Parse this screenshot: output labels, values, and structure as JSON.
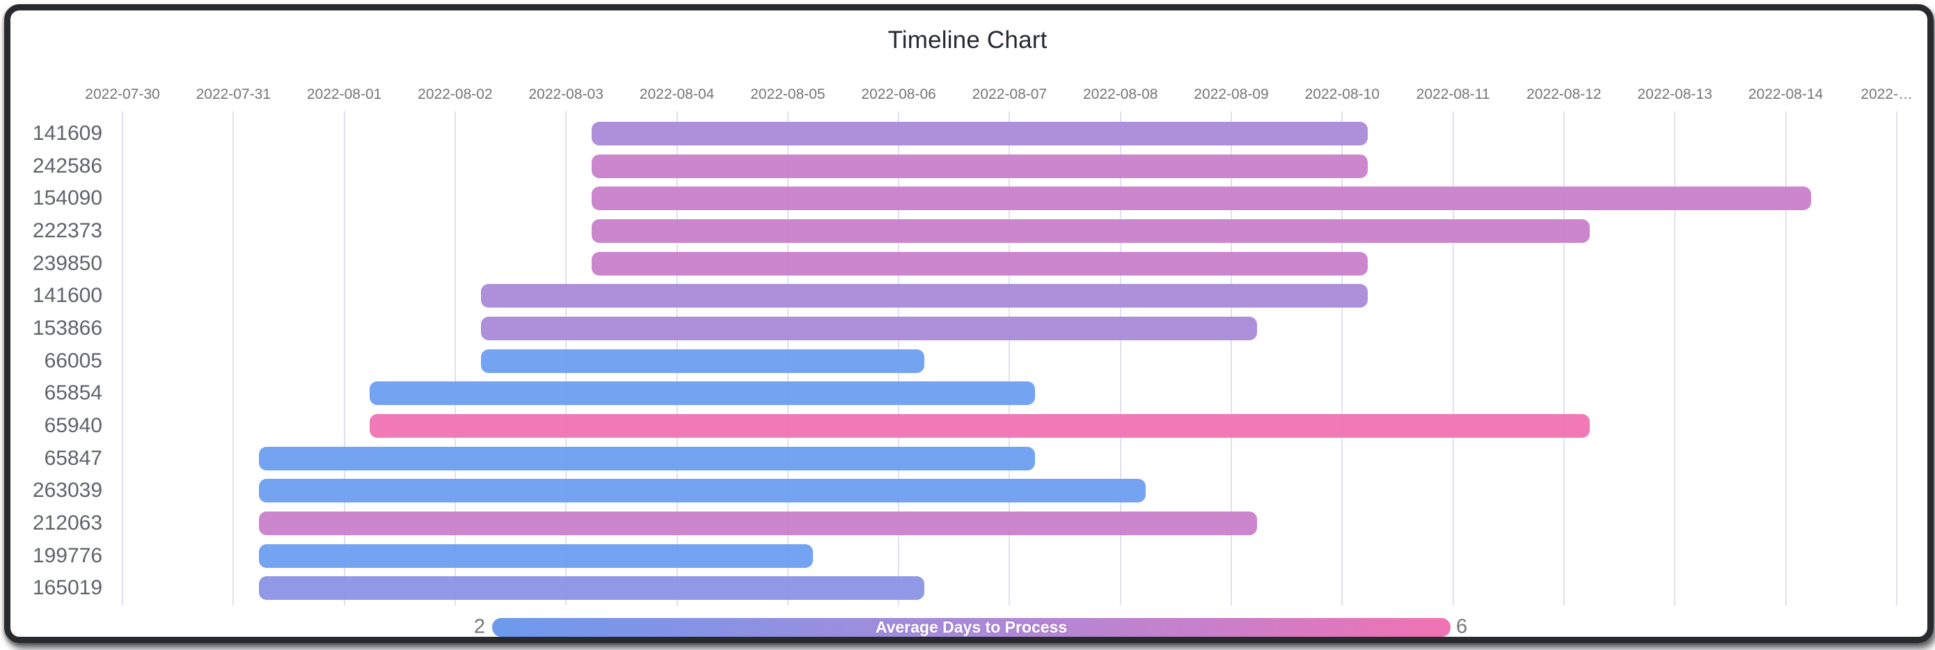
{
  "chart_data": {
    "type": "bar",
    "subtype": "timeline-gantt",
    "title": "Timeline Chart",
    "x_axis": {
      "tick_labels": [
        "2022-07-30",
        "2022-07-31",
        "2022-08-01",
        "2022-08-02",
        "2022-08-03",
        "2022-08-04",
        "2022-08-05",
        "2022-08-06",
        "2022-08-07",
        "2022-08-08",
        "2022-08-09",
        "2022-08-10",
        "2022-08-11",
        "2022-08-12",
        "2022-08-13",
        "2022-08-14",
        "2022-…"
      ],
      "start_date": "2022-07-30",
      "grid": true
    },
    "y_axis": {
      "labels": [
        "141609",
        "242586",
        "154090",
        "222373",
        "239850",
        "141600",
        "153866",
        "66005",
        "65854",
        "65940",
        "65847",
        "263039",
        "212063",
        "199776",
        "165019"
      ]
    },
    "rows": [
      {
        "id": "141609",
        "start": "2022-08-03",
        "end": "2022-08-10",
        "color": "#aa8ad8",
        "avg_days_to_process": 4
      },
      {
        "id": "242586",
        "start": "2022-08-03",
        "end": "2022-08-10",
        "color": "#c97fcb",
        "avg_days_to_process": 5
      },
      {
        "id": "154090",
        "start": "2022-08-03",
        "end": "2022-08-14",
        "color": "#c97fcb",
        "avg_days_to_process": 5
      },
      {
        "id": "222373",
        "start": "2022-08-03",
        "end": "2022-08-12",
        "color": "#c97fcb",
        "avg_days_to_process": 5
      },
      {
        "id": "239850",
        "start": "2022-08-03",
        "end": "2022-08-10",
        "color": "#c97fcb",
        "avg_days_to_process": 5
      },
      {
        "id": "141600",
        "start": "2022-08-02",
        "end": "2022-08-10",
        "color": "#aa8ad8",
        "avg_days_to_process": 4
      },
      {
        "id": "153866",
        "start": "2022-08-02",
        "end": "2022-08-09",
        "color": "#aa8ad8",
        "avg_days_to_process": 4
      },
      {
        "id": "66005",
        "start": "2022-08-02",
        "end": "2022-08-06",
        "color": "#6d9ef0",
        "avg_days_to_process": 2
      },
      {
        "id": "65854",
        "start": "2022-08-01",
        "end": "2022-08-07",
        "color": "#6d9ef0",
        "avg_days_to_process": 2
      },
      {
        "id": "65940",
        "start": "2022-08-01",
        "end": "2022-08-12",
        "color": "#ef72b2",
        "avg_days_to_process": 6
      },
      {
        "id": "65847",
        "start": "2022-07-31",
        "end": "2022-08-07",
        "color": "#6d9ef0",
        "avg_days_to_process": 2
      },
      {
        "id": "263039",
        "start": "2022-07-31",
        "end": "2022-08-08",
        "color": "#6d9ef0",
        "avg_days_to_process": 2
      },
      {
        "id": "212063",
        "start": "2022-07-31",
        "end": "2022-08-09",
        "color": "#c97fcb",
        "avg_days_to_process": 5
      },
      {
        "id": "199776",
        "start": "2022-07-31",
        "end": "2022-08-05",
        "color": "#6d9ef0",
        "avg_days_to_process": 2
      },
      {
        "id": "165019",
        "start": "2022-07-31",
        "end": "2022-08-06",
        "color": "#8b92e4",
        "avg_days_to_process": 3
      }
    ],
    "colorbar": {
      "title": "Average Days to Process",
      "min_label": "2",
      "max_label": "6",
      "gradient": [
        "#6d9aed",
        "#8b92e4",
        "#aa8ad8",
        "#c97fcb",
        "#f172b1"
      ],
      "orientation": "horizontal",
      "position": "bottom"
    }
  }
}
